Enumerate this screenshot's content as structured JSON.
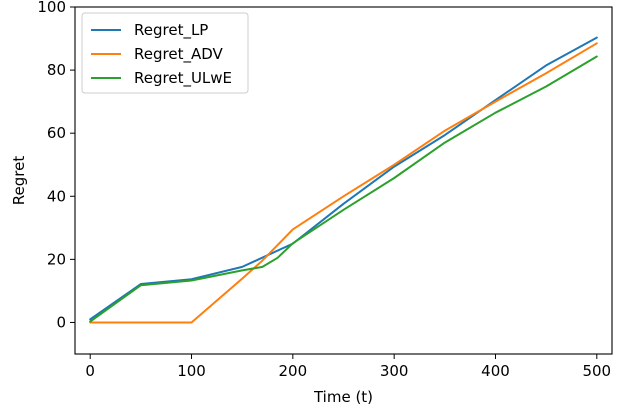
{
  "chart_data": {
    "type": "line",
    "title": "",
    "xlabel": "Time (t)",
    "ylabel": "Regret",
    "xlim": [
      -15,
      515
    ],
    "ylim": [
      -10,
      100
    ],
    "xticks": [
      0,
      100,
      200,
      300,
      400,
      500
    ],
    "yticks": [
      0,
      20,
      40,
      60,
      80,
      100
    ],
    "grid": false,
    "legend_position": "top-left",
    "series": [
      {
        "name": "Regret_LP",
        "color": "#1f77b4",
        "x": [
          0,
          50,
          100,
          150,
          200,
          250,
          300,
          350,
          400,
          450,
          500
        ],
        "y": [
          1.0,
          12.2,
          13.7,
          17.6,
          25.0,
          37.6,
          49.4,
          59.4,
          70.5,
          81.5,
          90.3
        ]
      },
      {
        "name": "Regret_ADV",
        "color": "#ff7f0e",
        "x": [
          0,
          50,
          100,
          150,
          170,
          200,
          250,
          300,
          350,
          400,
          450,
          500
        ],
        "y": [
          0.0,
          0.0,
          0.0,
          13.9,
          19.6,
          29.5,
          40.0,
          50.0,
          60.8,
          70.0,
          79.0,
          88.5
        ]
      },
      {
        "name": "Regret_ULwE",
        "color": "#2ca02c",
        "x": [
          0,
          50,
          100,
          150,
          170,
          185,
          200,
          250,
          300,
          350,
          400,
          450,
          500
        ],
        "y": [
          0.3,
          11.8,
          13.3,
          16.5,
          17.6,
          20.5,
          25.1,
          35.7,
          45.8,
          57.0,
          66.5,
          74.8,
          84.3
        ]
      }
    ]
  }
}
